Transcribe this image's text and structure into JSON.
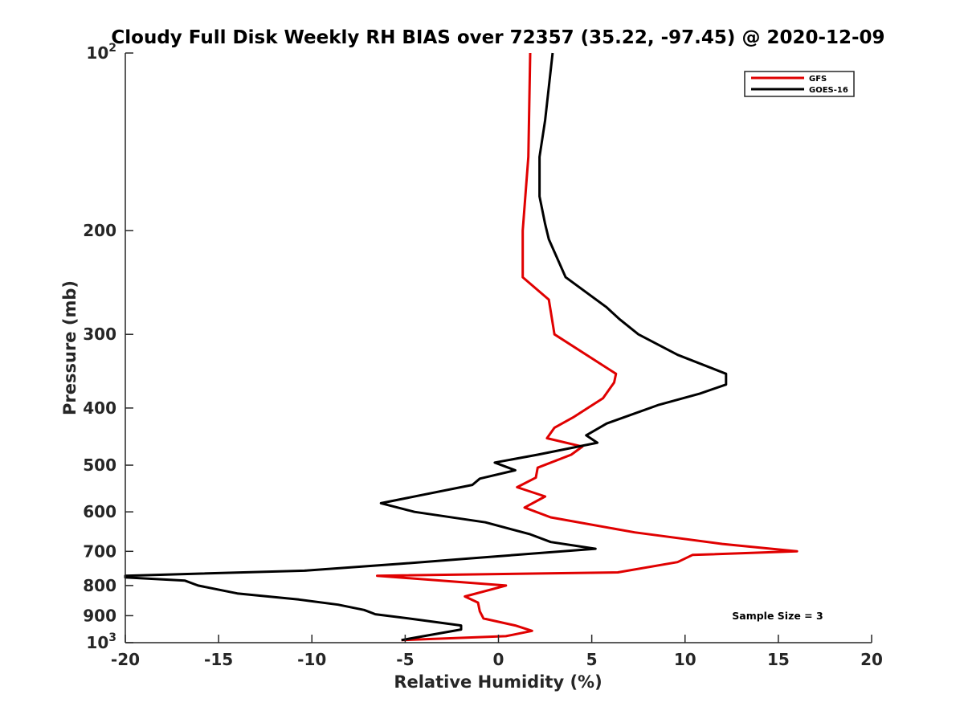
{
  "chart_data": {
    "type": "line",
    "title": "Cloudy Full Disk Weekly RH BIAS over 72357 (35.22, -97.45) @ 2020-12-09",
    "xlabel": "Relative Humidity (%)",
    "ylabel": "Pressure (mb)",
    "xlim": [
      -20,
      20
    ],
    "ylim": [
      100,
      1000
    ],
    "yscale": "log",
    "y_reversed": true,
    "grid": false,
    "legend_position": "top-right",
    "x_ticks": [
      "-20",
      "-15",
      "-10",
      "-5",
      "0",
      "5",
      "10",
      "15",
      "20"
    ],
    "y_ticks": [
      {
        "value": 100,
        "label": "10",
        "sup": "2"
      },
      {
        "value": 200,
        "label": "200"
      },
      {
        "value": 300,
        "label": "300"
      },
      {
        "value": 400,
        "label": "400"
      },
      {
        "value": 500,
        "label": "500"
      },
      {
        "value": 600,
        "label": "600"
      },
      {
        "value": 700,
        "label": "700"
      },
      {
        "value": 800,
        "label": "800"
      },
      {
        "value": 900,
        "label": "900"
      },
      {
        "value": 1000,
        "label": "10",
        "sup": "3"
      }
    ],
    "annotation": "Sample Size = 3",
    "series": [
      {
        "name": "GFS",
        "color": "#e00000",
        "points": [
          [
            1.7,
            100
          ],
          [
            1.6,
            150
          ],
          [
            1.3,
            200
          ],
          [
            1.3,
            240
          ],
          [
            2.7,
            262
          ],
          [
            3.0,
            300
          ],
          [
            6.3,
            350
          ],
          [
            6.2,
            362
          ],
          [
            5.6,
            385
          ],
          [
            4.0,
            415
          ],
          [
            3.0,
            432
          ],
          [
            2.6,
            450
          ],
          [
            4.5,
            465
          ],
          [
            3.9,
            480
          ],
          [
            2.1,
            505
          ],
          [
            2.0,
            525
          ],
          [
            1.0,
            545
          ],
          [
            2.5,
            565
          ],
          [
            1.4,
            590
          ],
          [
            2.8,
            613
          ],
          [
            7.3,
            650
          ],
          [
            12.0,
            680
          ],
          [
            16.0,
            700
          ],
          [
            10.4,
            710
          ],
          [
            9.6,
            730
          ],
          [
            6.4,
            760
          ],
          [
            -6.5,
            770
          ],
          [
            0.4,
            800
          ],
          [
            -1.8,
            835
          ],
          [
            -1.1,
            855
          ],
          [
            -1.0,
            885
          ],
          [
            -0.8,
            910
          ],
          [
            0.9,
            935
          ],
          [
            1.8,
            955
          ],
          [
            0.4,
            975
          ],
          [
            -5.2,
            990
          ]
        ]
      },
      {
        "name": "GOES-16",
        "color": "#000000",
        "points": [
          [
            2.9,
            100
          ],
          [
            2.5,
            130
          ],
          [
            2.2,
            150
          ],
          [
            2.2,
            175
          ],
          [
            2.5,
            195
          ],
          [
            2.7,
            207
          ],
          [
            3.6,
            240
          ],
          [
            5.8,
            270
          ],
          [
            6.5,
            283
          ],
          [
            7.5,
            300
          ],
          [
            9.6,
            325
          ],
          [
            12.2,
            350
          ],
          [
            12.2,
            365
          ],
          [
            10.8,
            378
          ],
          [
            8.6,
            395
          ],
          [
            5.8,
            425
          ],
          [
            4.7,
            445
          ],
          [
            5.3,
            458
          ],
          [
            2.1,
            480
          ],
          [
            -0.2,
            495
          ],
          [
            0.9,
            510
          ],
          [
            -1.0,
            527
          ],
          [
            -1.4,
            540
          ],
          [
            -6.3,
            580
          ],
          [
            -4.5,
            600
          ],
          [
            -0.7,
            625
          ],
          [
            1.7,
            655
          ],
          [
            2.8,
            675
          ],
          [
            5.2,
            693
          ],
          [
            -1.6,
            720
          ],
          [
            -5.3,
            735
          ],
          [
            -10.4,
            755
          ],
          [
            -20.0,
            770
          ],
          [
            -20.0,
            775
          ],
          [
            -16.8,
            785
          ],
          [
            -16.1,
            800
          ],
          [
            -14.0,
            825
          ],
          [
            -10.7,
            845
          ],
          [
            -8.6,
            862
          ],
          [
            -7.2,
            880
          ],
          [
            -6.6,
            895
          ],
          [
            -4.2,
            915
          ],
          [
            -2.0,
            935
          ],
          [
            -2.0,
            950
          ],
          [
            -5.2,
            990
          ]
        ]
      }
    ]
  }
}
